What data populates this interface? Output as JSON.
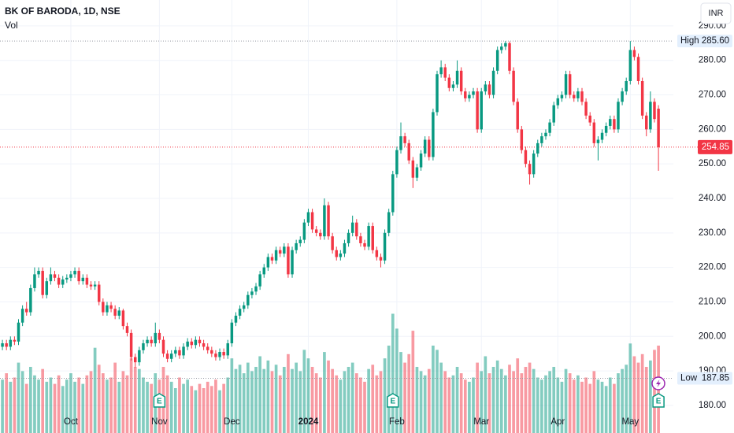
{
  "chart_data": {
    "type": "candlestick",
    "title": "BK OF BARODA, 1D, NSE",
    "volume_label": "Vol",
    "currency": "INR",
    "up_color": "#089981",
    "down_color": "#f23645",
    "volume_opacity": 0.5,
    "grid": true,
    "ylim": [
      172,
      297.5
    ],
    "yticks": [
      {
        "value": 180,
        "label": "180.00"
      },
      {
        "value": 190,
        "label": "190.00"
      },
      {
        "value": 200,
        "label": "200.00"
      },
      {
        "value": 210,
        "label": "210.00"
      },
      {
        "value": 220,
        "label": "220.00"
      },
      {
        "value": 230,
        "label": "230.00"
      },
      {
        "value": 240,
        "label": "240.00"
      },
      {
        "value": 250,
        "label": "250.00"
      },
      {
        "value": 260,
        "label": "260.00"
      },
      {
        "value": 270,
        "label": "270.00"
      },
      {
        "value": 280,
        "label": "280.00"
      },
      {
        "value": 290,
        "label": "290.00"
      }
    ],
    "xlim": [
      -0.6,
      166.7
    ],
    "xticks": [
      {
        "value": 17,
        "label": "Oct"
      },
      {
        "value": 39,
        "label": "Nov"
      },
      {
        "value": 57,
        "label": "Dec"
      },
      {
        "value": 76,
        "label": "2024"
      },
      {
        "value": 98,
        "label": "Feb"
      },
      {
        "value": 119,
        "label": "Mar"
      },
      {
        "value": 138,
        "label": "Apr"
      },
      {
        "value": 156,
        "label": "May"
      }
    ],
    "vlim": [
      0,
      100
    ],
    "high_marker": {
      "name": "High",
      "value": 285.6,
      "label": "285.60"
    },
    "low_marker": {
      "name": "Low",
      "value": 187.85,
      "label": "187.85"
    },
    "events": [
      {
        "index": 39,
        "label": "E"
      },
      {
        "index": 97,
        "label": "E"
      },
      {
        "index": 163,
        "label": "E"
      }
    ],
    "open": [
      197,
      198,
      197,
      199,
      198.5,
      204,
      208,
      207,
      214,
      218,
      219,
      212,
      216,
      218,
      217,
      215,
      216.5,
      217,
      218,
      219,
      216,
      217,
      215,
      214.5,
      215,
      210,
      207,
      209,
      208,
      206,
      207.5,
      203,
      201,
      194,
      192.5,
      196,
      198,
      199,
      198,
      201,
      199,
      195,
      193.5,
      195,
      196,
      194.5,
      197,
      198.5,
      197.5,
      199,
      198,
      197,
      196,
      195,
      194,
      195.5,
      194.5,
      198,
      204,
      206,
      208,
      209,
      212,
      213,
      214.5,
      218,
      220,
      223,
      222,
      225,
      224,
      226,
      218,
      225,
      227,
      228,
      233,
      236,
      231,
      230,
      229,
      238,
      229,
      225,
      223,
      224,
      227,
      230,
      233,
      229,
      227,
      226,
      232,
      225,
      223,
      222,
      230,
      236,
      247,
      254,
      258,
      256,
      251,
      246,
      249,
      253,
      257,
      252,
      265,
      276,
      278,
      275,
      272,
      273,
      277,
      271,
      269,
      270,
      271,
      260,
      271,
      273,
      270,
      277,
      283,
      284,
      285,
      277,
      268,
      260,
      254,
      250,
      247,
      253,
      256,
      258,
      259,
      262,
      267,
      269,
      270,
      276,
      270,
      269,
      271,
      268,
      264,
      262,
      256,
      257,
      259,
      261,
      263,
      260,
      268,
      271,
      274,
      283,
      281,
      274,
      264,
      260,
      268,
      266
    ],
    "high": [
      199,
      199,
      200,
      200,
      205,
      209,
      210,
      215,
      220,
      220,
      220,
      217,
      220,
      219,
      218,
      217.5,
      218,
      219,
      220,
      220,
      218,
      218,
      216,
      216,
      216,
      211,
      210,
      210,
      209,
      208.5,
      208,
      204,
      202,
      195,
      197,
      199,
      200,
      200,
      204,
      202,
      200,
      196,
      196,
      197,
      197,
      198,
      199.5,
      199.5,
      200,
      200,
      199,
      198,
      197,
      196,
      196.5,
      196.5,
      199,
      205,
      207,
      209,
      210,
      213,
      214,
      215.5,
      219,
      221,
      224,
      224,
      226,
      226,
      227,
      227,
      226,
      228,
      229,
      234,
      237,
      237,
      232,
      231,
      240,
      239,
      230,
      226,
      225,
      228,
      231,
      235,
      234,
      230,
      228,
      233,
      233,
      226,
      224,
      231,
      237,
      248,
      255,
      262,
      259,
      257,
      252,
      250,
      254,
      258,
      258,
      266,
      277,
      280,
      279,
      276,
      274,
      280,
      278,
      272,
      271,
      272,
      272,
      272,
      274,
      274,
      278,
      284,
      285,
      285.6,
      285.5,
      278,
      269,
      261,
      255,
      251,
      254,
      257,
      259,
      260,
      263,
      268,
      270,
      271,
      277,
      277,
      271,
      272,
      272,
      269,
      265,
      263,
      258,
      260,
      262,
      264,
      264,
      269,
      272,
      275,
      285.6,
      284,
      282,
      275,
      265,
      271,
      269,
      267
    ],
    "low": [
      196,
      196,
      196,
      197.5,
      197.5,
      203,
      206,
      206,
      213,
      217,
      211,
      211,
      215,
      216,
      214,
      214,
      215.5,
      216,
      217,
      215,
      215,
      214,
      213.5,
      213.5,
      209,
      206,
      206,
      207,
      205,
      205,
      202,
      200,
      193,
      191,
      191.5,
      195,
      197,
      197,
      197,
      198,
      194,
      192.5,
      192.5,
      194,
      193.5,
      193.5,
      196,
      196.5,
      196.5,
      197,
      196,
      195,
      194,
      193,
      193,
      193.5,
      193.5,
      197,
      203,
      205,
      207,
      208,
      211,
      212,
      213.5,
      217,
      219,
      221,
      221,
      223,
      223,
      217,
      217,
      224,
      226,
      227,
      232,
      230,
      229,
      228,
      228,
      228,
      224,
      222,
      222,
      223,
      226,
      229,
      228,
      226,
      225,
      225,
      224,
      222,
      220,
      221,
      229,
      235,
      246,
      253,
      255,
      250,
      243,
      245,
      248,
      252,
      251,
      251,
      264,
      275,
      274,
      271,
      271,
      272,
      270,
      268,
      268,
      269,
      259,
      259,
      270,
      269,
      269,
      276,
      282,
      283,
      276,
      267,
      259,
      253,
      249,
      244,
      246,
      252,
      255,
      257,
      258,
      261,
      266,
      268,
      269,
      269,
      268,
      268,
      267,
      263,
      261,
      255,
      251,
      256,
      258,
      260,
      259,
      259,
      267,
      270,
      273,
      280,
      273,
      263,
      258,
      259,
      262,
      248
    ],
    "close": [
      198,
      197,
      199,
      198.5,
      204,
      208,
      207,
      214,
      218,
      219,
      212,
      216,
      218,
      217,
      215,
      216.5,
      217,
      218,
      219,
      216,
      217,
      215,
      214.5,
      215,
      210,
      207,
      209,
      208,
      206,
      207.5,
      203,
      201,
      194,
      192.5,
      196,
      198,
      199,
      198,
      201,
      199,
      195,
      193.5,
      195,
      196,
      194.5,
      197,
      198.5,
      197.5,
      199,
      198,
      197,
      196,
      195,
      194,
      195.5,
      194.5,
      198,
      204,
      206,
      208,
      209,
      212,
      213,
      214.5,
      218,
      220,
      223,
      222,
      225,
      224,
      226,
      218,
      225,
      227,
      228,
      233,
      236,
      231,
      230,
      229,
      238,
      229,
      225,
      223,
      224,
      227,
      230,
      233,
      229,
      227,
      226,
      232,
      225,
      223,
      222,
      230,
      236,
      247,
      254,
      258,
      256,
      251,
      246,
      249,
      253,
      257,
      252,
      265,
      276,
      278,
      275,
      272,
      273,
      277,
      271,
      269,
      270,
      271,
      260,
      271,
      273,
      270,
      277,
      283,
      284,
      285,
      277,
      268,
      260,
      254,
      250,
      247,
      253,
      256,
      258,
      259,
      262,
      267,
      269,
      270,
      276,
      270,
      269,
      271,
      268,
      264,
      262,
      256,
      257,
      259,
      261,
      263,
      260,
      268,
      271,
      274,
      283,
      281,
      274,
      264,
      260,
      268,
      263,
      254.85
    ],
    "volume": [
      14,
      17,
      13,
      15,
      22,
      18,
      12,
      20,
      16,
      14,
      19,
      13,
      15,
      12,
      16,
      11,
      14,
      17,
      13,
      15,
      12,
      16,
      18,
      29,
      21,
      17,
      14,
      15,
      22,
      13,
      18,
      16,
      24,
      20,
      19,
      15,
      13,
      12,
      17,
      14,
      20,
      16,
      13,
      10,
      15,
      12,
      14,
      11,
      9,
      12,
      10,
      13,
      11,
      14,
      9,
      12,
      15,
      24,
      19,
      21,
      17,
      22,
      18,
      20,
      25,
      19,
      23,
      18,
      21,
      16,
      20,
      26,
      19,
      22,
      18,
      28,
      24,
      20,
      17,
      15,
      27,
      23,
      19,
      16,
      14,
      18,
      20,
      22,
      17,
      15,
      13,
      19,
      21,
      16,
      18,
      24,
      30,
      45,
      38,
      27,
      22,
      26,
      37,
      20,
      18,
      16,
      19,
      30,
      28,
      22,
      18,
      15,
      16,
      20,
      17,
      14,
      13,
      15,
      22,
      18,
      25,
      17,
      20,
      23,
      19,
      16,
      21,
      18,
      24,
      17,
      20,
      22,
      19,
      15,
      14,
      16,
      18,
      20,
      15,
      13,
      19,
      17,
      14,
      16,
      13,
      15,
      12,
      18,
      14,
      13,
      11,
      15,
      12,
      17,
      19,
      21,
      31,
      25,
      22,
      26,
      20,
      23,
      28,
      30
    ]
  }
}
